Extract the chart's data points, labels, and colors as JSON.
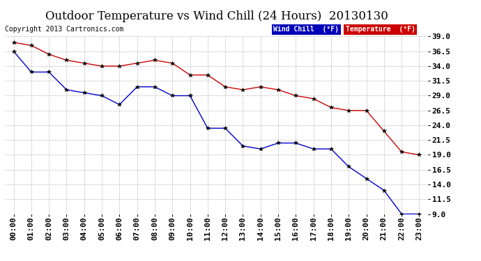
{
  "title": "Outdoor Temperature vs Wind Chill (24 Hours)  20130130",
  "copyright": "Copyright 2013 Cartronics.com",
  "background_color": "#ffffff",
  "plot_bg_color": "#ffffff",
  "grid_color": "#aaaaaa",
  "x_labels": [
    "00:00",
    "01:00",
    "02:00",
    "03:00",
    "04:00",
    "05:00",
    "06:00",
    "07:00",
    "08:00",
    "09:00",
    "10:00",
    "11:00",
    "12:00",
    "13:00",
    "14:00",
    "15:00",
    "16:00",
    "17:00",
    "18:00",
    "19:00",
    "20:00",
    "21:00",
    "22:00",
    "23:00"
  ],
  "y_ticks": [
    9.0,
    11.5,
    14.0,
    16.5,
    19.0,
    21.5,
    24.0,
    26.5,
    29.0,
    31.5,
    34.0,
    36.5,
    39.0
  ],
  "ylim": [
    9.0,
    39.0
  ],
  "temperature": [
    38.0,
    37.5,
    36.0,
    35.0,
    34.5,
    34.0,
    34.0,
    34.5,
    35.0,
    34.5,
    32.5,
    32.5,
    30.5,
    30.0,
    30.5,
    30.0,
    29.0,
    28.5,
    27.0,
    26.5,
    26.5,
    23.0,
    19.5,
    19.0
  ],
  "wind_chill": [
    36.5,
    33.0,
    33.0,
    30.0,
    29.5,
    29.0,
    27.5,
    30.5,
    30.5,
    29.0,
    29.0,
    23.5,
    23.5,
    20.5,
    20.0,
    21.0,
    21.0,
    20.0,
    20.0,
    17.0,
    15.0,
    13.0,
    9.0,
    9.0
  ],
  "temp_color": "#cc0000",
  "wind_color": "#0000cc",
  "legend_wind_bg": "#0000bb",
  "legend_temp_bg": "#cc0000",
  "legend_text_color": "#ffffff",
  "title_fontsize": 12,
  "tick_fontsize": 8,
  "copyright_fontsize": 7
}
